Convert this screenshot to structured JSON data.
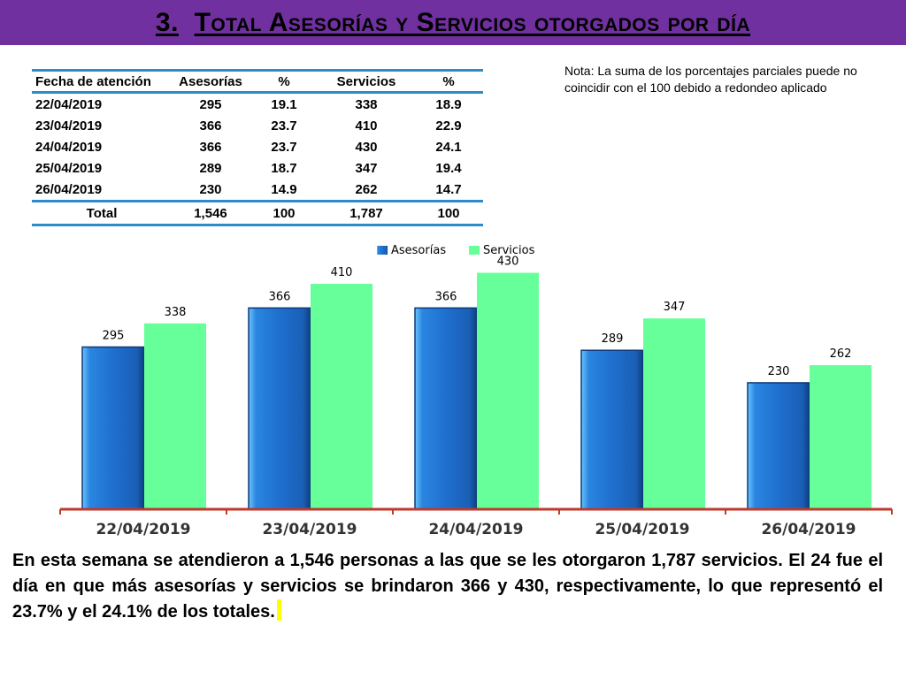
{
  "title": {
    "number": "3.",
    "text": "Total Asesorías y Servicios otorgados por día"
  },
  "table": {
    "headers": [
      "Fecha de atención",
      "Asesorías",
      "%",
      "Servicios",
      "%"
    ],
    "rows": [
      [
        "22/04/2019",
        "295",
        "19.1",
        "338",
        "18.9"
      ],
      [
        "23/04/2019",
        "366",
        "23.7",
        "410",
        "22.9"
      ],
      [
        "24/04/2019",
        "366",
        "23.7",
        "430",
        "24.1"
      ],
      [
        "25/04/2019",
        "289",
        "18.7",
        "347",
        "19.4"
      ],
      [
        "26/04/2019",
        "230",
        "14.9",
        "262",
        "14.7"
      ]
    ],
    "total": [
      "Total",
      "1,546",
      "100",
      "1,787",
      "100"
    ]
  },
  "note": "Nota: La suma de los porcentajes parciales puede no coincidir con el 100 debido a redondeo aplicado",
  "chart_data": {
    "type": "bar",
    "categories": [
      "22/04/2019",
      "23/04/2019",
      "24/04/2019",
      "25/04/2019",
      "26/04/2019"
    ],
    "series": [
      {
        "name": "Asesorías",
        "values": [
          295,
          366,
          366,
          289,
          230
        ],
        "color": "#1f6fcf"
      },
      {
        "name": "Servicios",
        "values": [
          338,
          410,
          430,
          347,
          262
        ],
        "color": "#66ff99"
      }
    ],
    "ylim": [
      0,
      500
    ],
    "legend_position": "top-center",
    "title": "",
    "xlabel": "",
    "ylabel": ""
  },
  "summary": "En esta semana se atendieron a 1,546 personas a las que se les otorgaron 1,787 servicios. El 24  fue el día en que más asesorías y servicios se brindaron 366 y 430, respectivamente, lo que representó  el 23.7% y el 24.1% de los totales.",
  "colors": {
    "title_bar": "#7030a0",
    "table_rule": "#2e8bc9",
    "axis": "#c0392b",
    "highlight": "#ffff00"
  }
}
